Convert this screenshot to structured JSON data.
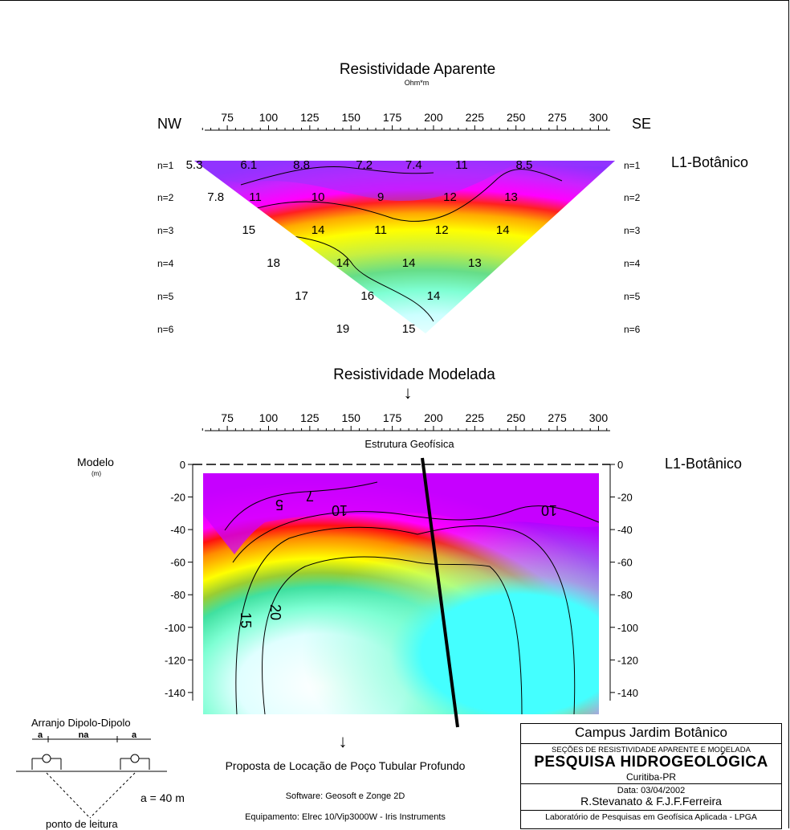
{
  "chart_data": [
    {
      "type": "heatmap",
      "title": "Resistividade Aparente",
      "subtitle": "Ohm*m",
      "left_label": "NW",
      "right_label": "SE",
      "line_label": "L1-Botânico",
      "x_ticks": [
        75,
        100,
        125,
        150,
        175,
        200,
        225,
        250,
        275,
        300
      ],
      "xlim": [
        55,
        310
      ],
      "rows": [
        "n=1",
        "n=2",
        "n=3",
        "n=4",
        "n=5",
        "n=6"
      ],
      "values": [
        {
          "n": 1,
          "x": 55,
          "v": "5.3"
        },
        {
          "n": 1,
          "x": 88,
          "v": "6.1"
        },
        {
          "n": 1,
          "x": 120,
          "v": "8.8"
        },
        {
          "n": 1,
          "x": 158,
          "v": "7.2"
        },
        {
          "n": 1,
          "x": 188,
          "v": "7.4"
        },
        {
          "n": 1,
          "x": 217,
          "v": "11"
        },
        {
          "n": 1,
          "x": 255,
          "v": "8.5"
        },
        {
          "n": 2,
          "x": 68,
          "v": "7.8"
        },
        {
          "n": 2,
          "x": 92,
          "v": "11"
        },
        {
          "n": 2,
          "x": 130,
          "v": "10"
        },
        {
          "n": 2,
          "x": 168,
          "v": "9"
        },
        {
          "n": 2,
          "x": 210,
          "v": "12"
        },
        {
          "n": 2,
          "x": 247,
          "v": "13"
        },
        {
          "n": 3,
          "x": 88,
          "v": "15"
        },
        {
          "n": 3,
          "x": 130,
          "v": "14"
        },
        {
          "n": 3,
          "x": 168,
          "v": "11"
        },
        {
          "n": 3,
          "x": 205,
          "v": "12"
        },
        {
          "n": 3,
          "x": 242,
          "v": "14"
        },
        {
          "n": 4,
          "x": 103,
          "v": "18"
        },
        {
          "n": 4,
          "x": 145,
          "v": "14"
        },
        {
          "n": 4,
          "x": 185,
          "v": "14"
        },
        {
          "n": 4,
          "x": 225,
          "v": "13"
        },
        {
          "n": 5,
          "x": 120,
          "v": "17"
        },
        {
          "n": 5,
          "x": 160,
          "v": "16"
        },
        {
          "n": 5,
          "x": 200,
          "v": "14"
        },
        {
          "n": 6,
          "x": 145,
          "v": "19"
        },
        {
          "n": 6,
          "x": 185,
          "v": "15"
        }
      ]
    },
    {
      "type": "heatmap",
      "title": "Resistividade Modelada",
      "x_ticks": [
        75,
        100,
        125,
        150,
        175,
        200,
        225,
        250,
        275,
        300
      ],
      "xlim": [
        55,
        310
      ],
      "structure_label": "Estrutura Geofísica",
      "ylabel": "Modelo",
      "yunit": "(m)",
      "line_label": "L1-Botânico",
      "y_ticks": [
        0,
        -20,
        -40,
        -60,
        -80,
        -100,
        -120,
        -140
      ],
      "ylim": [
        -145,
        0
      ],
      "contour_labels": [
        "5",
        "7",
        "10",
        "10",
        "15",
        "20"
      ],
      "colorscale": [
        "#8a2be2",
        "#c400ff",
        "#ff00ff",
        "#ff0000",
        "#ff8c00",
        "#ffff00",
        "#9acd32",
        "#3cb371",
        "#00ced1",
        "#7fffd4",
        "#ffffff"
      ]
    }
  ],
  "labels": {
    "arrow": "↓",
    "proposal": "Proposta de Locação de Poço Tubular Profundo",
    "software": "Software: Geosoft e Zonge 2D",
    "equipment": "Equipamento: Elrec 10/Vip3000W - Iris Instruments"
  },
  "array": {
    "title": "Arranjo Dipolo-Dipolo",
    "a1": "a",
    "na": "na",
    "a2": "a",
    "spacing": "a = 40 m",
    "reading_point": "ponto de leitura"
  },
  "infobox": {
    "campus": "Campus Jardim Botânico",
    "sections": "SEÇÕES DE RESISTIVIDADE APARENTE E MODELADA",
    "project": "PESQUISA HIDROGEOLÓGICA",
    "city": "Curitiba-PR",
    "date": "Data: 03/04/2002",
    "authors": "R.Stevanato & F.J.F.Ferreira",
    "lab": "Laboratório de Pesquisas em Geofísica Aplicada - LPGA"
  }
}
